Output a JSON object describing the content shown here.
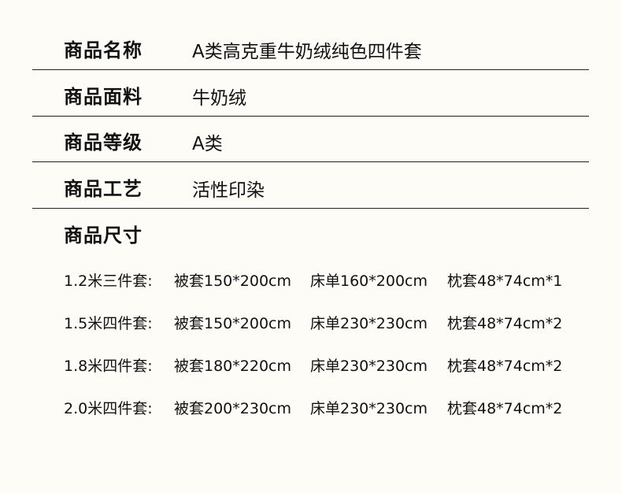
{
  "specs": [
    {
      "label": "商品名称",
      "value": "A类高克重牛奶绒纯色四件套"
    },
    {
      "label": "商品面料",
      "value": "牛奶绒"
    },
    {
      "label": "商品等级",
      "value": "A类"
    },
    {
      "label": "商品工艺",
      "value": "活性印染"
    }
  ],
  "sizes": {
    "title": "商品尺寸",
    "rows": [
      {
        "set": "1.2米三件套:",
        "duvet": "被套150*200cm",
        "sheet": "床单160*200cm",
        "pillow": "枕套48*74cm*1"
      },
      {
        "set": "1.5米四件套:",
        "duvet": "被套150*200cm",
        "sheet": "床单230*230cm",
        "pillow": "枕套48*74cm*2"
      },
      {
        "set": "1.8米四件套:",
        "duvet": "被套180*220cm",
        "sheet": "床单230*230cm",
        "pillow": "枕套48*74cm*2"
      },
      {
        "set": "2.0米四件套:",
        "duvet": "被套200*230cm",
        "sheet": "床单230*230cm",
        "pillow": "枕套48*74cm*2"
      }
    ]
  }
}
